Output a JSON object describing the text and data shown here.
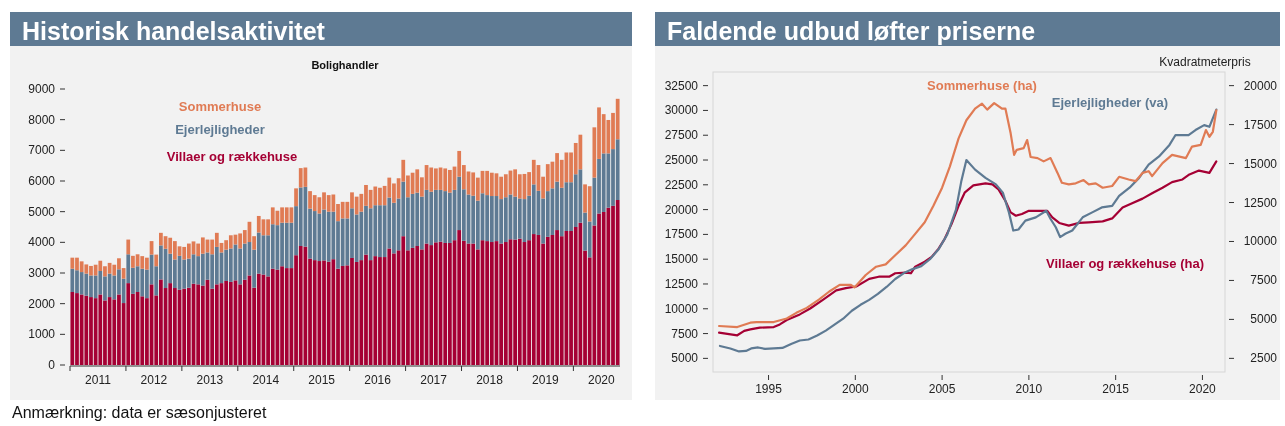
{
  "chart_data": [
    {
      "type": "bar",
      "title": "Historisk handelsaktivitet",
      "subtitle": "Bolighandler",
      "stacked": true,
      "legend": "top left",
      "grid": false,
      "x": [
        "2011-01",
        "2011-02",
        "2011-03",
        "2011-04",
        "2011-05",
        "2011-06",
        "2011-07",
        "2011-08",
        "2011-09",
        "2011-10",
        "2011-11",
        "2011-12",
        "2012-01",
        "2012-02",
        "2012-03",
        "2012-04",
        "2012-05",
        "2012-06",
        "2012-07",
        "2012-08",
        "2012-09",
        "2012-10",
        "2012-11",
        "2012-12",
        "2013-01",
        "2013-02",
        "2013-03",
        "2013-04",
        "2013-05",
        "2013-06",
        "2013-07",
        "2013-08",
        "2013-09",
        "2013-10",
        "2013-11",
        "2013-12",
        "2014-01",
        "2014-02",
        "2014-03",
        "2014-04",
        "2014-05",
        "2014-06",
        "2014-07",
        "2014-08",
        "2014-09",
        "2014-10",
        "2014-11",
        "2014-12",
        "2015-01",
        "2015-02",
        "2015-03",
        "2015-04",
        "2015-05",
        "2015-06",
        "2015-07",
        "2015-08",
        "2015-09",
        "2015-10",
        "2015-11",
        "2015-12",
        "2016-01",
        "2016-02",
        "2016-03",
        "2016-04",
        "2016-05",
        "2016-06",
        "2016-07",
        "2016-08",
        "2016-09",
        "2016-10",
        "2016-11",
        "2016-12",
        "2017-01",
        "2017-02",
        "2017-03",
        "2017-04",
        "2017-05",
        "2017-06",
        "2017-07",
        "2017-08",
        "2017-09",
        "2017-10",
        "2017-11",
        "2017-12",
        "2018-01",
        "2018-02",
        "2018-03",
        "2018-04",
        "2018-05",
        "2018-06",
        "2018-07",
        "2018-08",
        "2018-09",
        "2018-10",
        "2018-11",
        "2018-12",
        "2019-01",
        "2019-02",
        "2019-03",
        "2019-04",
        "2019-05",
        "2019-06",
        "2019-07",
        "2019-08",
        "2019-09",
        "2019-10",
        "2019-11",
        "2019-12",
        "2020-01",
        "2020-02",
        "2020-03",
        "2020-04",
        "2020-05",
        "2020-06",
        "2020-07",
        "2020-08",
        "2020-09",
        "2020-10"
      ],
      "xlim": [
        "2011-01",
        "2020-11"
      ],
      "xticks": [
        {
          "value": "2011-01",
          "label": null
        },
        {
          "value": "2011-07",
          "label": "2011"
        },
        {
          "value": "2012-01",
          "label": null
        },
        {
          "value": "2012-07",
          "label": "2012"
        },
        {
          "value": "2013-01",
          "label": null
        },
        {
          "value": "2013-07",
          "label": "2013"
        },
        {
          "value": "2014-01",
          "label": null
        },
        {
          "value": "2014-07",
          "label": "2014"
        },
        {
          "value": "2015-01",
          "label": null
        },
        {
          "value": "2015-07",
          "label": "2015"
        },
        {
          "value": "2016-01",
          "label": null
        },
        {
          "value": "2016-07",
          "label": "2016"
        },
        {
          "value": "2017-01",
          "label": null
        },
        {
          "value": "2017-07",
          "label": "2017"
        },
        {
          "value": "2018-01",
          "label": null
        },
        {
          "value": "2018-07",
          "label": "2018"
        },
        {
          "value": "2019-01",
          "label": null
        },
        {
          "value": "2019-07",
          "label": "2019"
        },
        {
          "value": "2020-01",
          "label": null
        },
        {
          "value": "2020-07",
          "label": "2020"
        }
      ],
      "ylim": [
        0,
        9000
      ],
      "yticks": [
        0,
        1000,
        2000,
        3000,
        4000,
        5000,
        6000,
        7000,
        8000,
        9000
      ],
      "annotations": [
        "Anmærkning: data er sæsonjusteret"
      ],
      "series": [
        {
          "name": "Villaer og rækkehuse",
          "color": "#a50034",
          "values": [
            2380,
            2345,
            2300,
            2260,
            2215,
            2180,
            2300,
            2105,
            2215,
            2140,
            2300,
            2020,
            2670,
            2320,
            2380,
            2240,
            2180,
            2630,
            2270,
            2790,
            2510,
            2670,
            2510,
            2455,
            2490,
            2520,
            2650,
            2630,
            2590,
            2780,
            2490,
            2630,
            2670,
            2740,
            2710,
            2760,
            2630,
            2780,
            2920,
            2520,
            2980,
            2950,
            2890,
            3140,
            3110,
            3220,
            3160,
            3160,
            3580,
            3880,
            3860,
            3470,
            3420,
            3390,
            3410,
            3370,
            3450,
            3140,
            3230,
            3250,
            3490,
            3360,
            3420,
            3600,
            3420,
            3550,
            3520,
            3520,
            3800,
            3640,
            3740,
            4200,
            3740,
            3820,
            3880,
            3770,
            3960,
            3910,
            4000,
            4020,
            3980,
            3980,
            4070,
            4400,
            4050,
            3960,
            3960,
            3770,
            4070,
            4040,
            4010,
            4040,
            3960,
            4010,
            4100,
            4090,
            4120,
            4010,
            4070,
            4270,
            4240,
            3960,
            4180,
            4240,
            4400,
            4200,
            4370,
            4370,
            4500,
            4640,
            3730,
            3510,
            4550,
            4940,
            4990,
            5130,
            5190,
            5380
          ]
        },
        {
          "name": "Ejerlejligheder",
          "color": "#5e7a93",
          "values": [
            760,
            745,
            730,
            720,
            705,
            740,
            765,
            785,
            765,
            780,
            820,
            795,
            940,
            850,
            840,
            900,
            930,
            970,
            950,
            1110,
            1280,
            960,
            930,
            1105,
            950,
            950,
            960,
            920,
            1040,
            890,
            1120,
            1220,
            1000,
            1020,
            1090,
            1170,
            1170,
            1180,
            1090,
            1240,
            1340,
            1280,
            1340,
            1450,
            1450,
            1420,
            1480,
            1480,
            1600,
            1910,
            1950,
            1630,
            1600,
            1550,
            1660,
            1630,
            1550,
            1550,
            1550,
            1530,
            1620,
            1550,
            1580,
            1590,
            1690,
            1660,
            1690,
            1690,
            1660,
            1650,
            1690,
            1780,
            1730,
            1760,
            1740,
            1720,
            1750,
            1740,
            1710,
            1690,
            1690,
            1640,
            1640,
            1740,
            1680,
            1600,
            1560,
            1590,
            1530,
            1500,
            1500,
            1470,
            1450,
            1460,
            1460,
            1400,
            1310,
            1400,
            1450,
            1620,
            1440,
            1470,
            1490,
            1520,
            1580,
            1580,
            1590,
            1590,
            1720,
            1740,
            1240,
            1170,
            1560,
            1780,
            1910,
            1770,
            1850,
            1980
          ]
        },
        {
          "name": "Sommerhuse",
          "color": "#e07b54",
          "values": [
            360,
            410,
            350,
            300,
            310,
            350,
            335,
            330,
            350,
            350,
            360,
            345,
            480,
            390,
            390,
            410,
            390,
            440,
            380,
            410,
            410,
            520,
            600,
            310,
            410,
            490,
            420,
            410,
            530,
            420,
            480,
            460,
            310,
            310,
            430,
            320,
            490,
            440,
            660,
            440,
            540,
            520,
            520,
            550,
            470,
            500,
            500,
            500,
            580,
            630,
            630,
            570,
            520,
            530,
            560,
            540,
            560,
            560,
            540,
            540,
            520,
            580,
            580,
            680,
            600,
            610,
            570,
            630,
            650,
            630,
            660,
            710,
            710,
            690,
            760,
            630,
            810,
            790,
            700,
            730,
            740,
            740,
            760,
            840,
            790,
            750,
            760,
            750,
            730,
            790,
            760,
            740,
            730,
            750,
            780,
            890,
            790,
            820,
            770,
            800,
            840,
            710,
            880,
            870,
            930,
            910,
            970,
            970,
            1020,
            1130,
            920,
            1150,
            1640,
            1680,
            1280,
            1090,
            1180,
            1320
          ]
        }
      ]
    },
    {
      "type": "line",
      "title": "Faldende udbud løfter priserne",
      "y2label": "Kvadratmeterpris",
      "legend": false,
      "grid": false,
      "line_style": "solid",
      "xlim": [
        1991.8,
        2021.3
      ],
      "xticks": [
        1995,
        2000,
        2005,
        2010,
        2015,
        2020
      ],
      "ylim": [
        3625,
        33875
      ],
      "yticks": [
        5000,
        7500,
        10000,
        12500,
        15000,
        17500,
        20000,
        22500,
        25000,
        27500,
        30000,
        32500
      ],
      "y2lim": [
        1625,
        20875
      ],
      "y2ticks": [
        2500,
        5000,
        7500,
        10000,
        12500,
        15000,
        17500,
        20000
      ],
      "series": [
        {
          "name": "Villaer og rækkehuse (ha)",
          "color": "#a50034",
          "axis": "y2",
          "x": [
            1992.15,
            1993.2,
            1993.6,
            1993.95,
            1994.5,
            1995.3,
            1995.65,
            1996.05,
            1996.8,
            1997.4,
            1998.15,
            1998.9,
            1999.45,
            2000.05,
            2000.8,
            2001.35,
            2001.95,
            2002.3,
            2002.9,
            2003.2,
            2003.45,
            2004.0,
            2004.4,
            2004.8,
            2005.15,
            2005.55,
            2005.95,
            2006.3,
            2006.8,
            2007.5,
            2007.9,
            2008.25,
            2008.65,
            2008.95,
            2009.25,
            2009.6,
            2010.0,
            2010.6,
            2011.05,
            2011.35,
            2011.75,
            2012.3,
            2012.9,
            2013.45,
            2014.25,
            2014.8,
            2015.4,
            2015.95,
            2016.55,
            2017.1,
            2017.7,
            2018.25,
            2018.85,
            2019.25,
            2019.8,
            2020.4,
            2020.8
          ],
          "values": [
            4150,
            3980,
            4260,
            4360,
            4470,
            4510,
            4680,
            4960,
            5320,
            5700,
            6270,
            6860,
            7010,
            7110,
            7600,
            7740,
            7740,
            7960,
            8000,
            7960,
            8380,
            8700,
            9010,
            9540,
            10170,
            11130,
            12290,
            13130,
            13600,
            13730,
            13660,
            13340,
            12600,
            11870,
            11650,
            11760,
            11970,
            11970,
            11970,
            11550,
            11190,
            11020,
            11190,
            11230,
            11290,
            11480,
            12180,
            12460,
            12750,
            13090,
            13450,
            13810,
            13980,
            14300,
            14550,
            14400,
            15140
          ]
        },
        {
          "name": "Ejerlejligheder (va)",
          "color": "#5e7a93",
          "x": [
            1992.2,
            1992.8,
            1993.3,
            1993.7,
            1994.0,
            1994.4,
            1994.8,
            1995.3,
            1995.8,
            1996.3,
            1996.8,
            1997.3,
            1997.8,
            1998.3,
            1998.8,
            1999.3,
            1999.8,
            2000.3,
            2000.8,
            2001.3,
            2001.8,
            2002.3,
            2002.8,
            2003.3,
            2003.8,
            2004.3,
            2004.8,
            2005.3,
            2005.8,
            2006.1,
            2006.4,
            2006.9,
            2007.5,
            2008.1,
            2008.5,
            2008.85,
            2009.1,
            2009.4,
            2009.8,
            2010.4,
            2011.0,
            2011.25,
            2011.55,
            2011.8,
            2012.1,
            2012.5,
            2013.1,
            2013.65,
            2014.2,
            2014.8,
            2015.2,
            2015.8,
            2016.35,
            2016.9,
            2017.5,
            2018.1,
            2018.45,
            2019.2,
            2019.6,
            2020.1,
            2020.4,
            2020.8
          ],
          "values": [
            6250,
            6000,
            5700,
            5750,
            6000,
            6100,
            5950,
            6000,
            6050,
            6450,
            6800,
            6900,
            7300,
            7800,
            8400,
            9000,
            9800,
            10400,
            10900,
            11500,
            12200,
            13000,
            13600,
            14000,
            14300,
            15000,
            16000,
            17500,
            20000,
            22800,
            25000,
            24030,
            23200,
            22540,
            21710,
            19720,
            17890,
            17990,
            18890,
            19220,
            19880,
            19050,
            18220,
            17230,
            17560,
            17890,
            19220,
            19720,
            20220,
            20380,
            21380,
            22210,
            23200,
            24530,
            25360,
            26520,
            27520,
            27520,
            28020,
            28520,
            28350,
            30080
          ]
        },
        {
          "name": "Sommerhuse (ha)",
          "color": "#e07b54",
          "axis": "y2",
          "x": [
            1992.15,
            1993.2,
            1993.95,
            1994.3,
            1995.3,
            1996.05,
            1996.6,
            1997.2,
            1997.9,
            1998.5,
            1999.1,
            1999.75,
            1999.95,
            2000.6,
            2001.2,
            2001.75,
            2002.3,
            2002.9,
            2003.45,
            2004.0,
            2004.5,
            2005.0,
            2005.45,
            2005.95,
            2006.4,
            2006.9,
            2007.3,
            2007.6,
            2008.0,
            2008.45,
            2008.65,
            2008.95,
            2009.15,
            2009.3,
            2009.7,
            2009.9,
            2010.1,
            2010.5,
            2010.85,
            2011.25,
            2011.65,
            2011.9,
            2012.3,
            2012.7,
            2013.15,
            2013.45,
            2013.85,
            2014.25,
            2014.8,
            2015.2,
            2015.75,
            2016.15,
            2016.55,
            2016.9,
            2017.1,
            2017.7,
            2018.25,
            2019.05,
            2019.4,
            2019.9,
            2020.2,
            2020.4,
            2020.6,
            2020.8
          ],
          "values": [
            4575,
            4510,
            4790,
            4830,
            4830,
            5060,
            5420,
            5740,
            6270,
            6790,
            7220,
            7220,
            7050,
            7850,
            8380,
            8530,
            9120,
            9750,
            10490,
            11230,
            12290,
            13450,
            14820,
            16620,
            17780,
            18520,
            18840,
            18460,
            18880,
            18520,
            18520,
            16940,
            15560,
            15880,
            15990,
            16510,
            15420,
            15350,
            15140,
            15350,
            14400,
            13770,
            13660,
            13730,
            13940,
            13660,
            13730,
            13450,
            13560,
            14150,
            13980,
            13870,
            14400,
            14510,
            14190,
            15030,
            15560,
            15350,
            16090,
            16200,
            17150,
            16720,
            17040,
            18420
          ]
        }
      ]
    }
  ]
}
